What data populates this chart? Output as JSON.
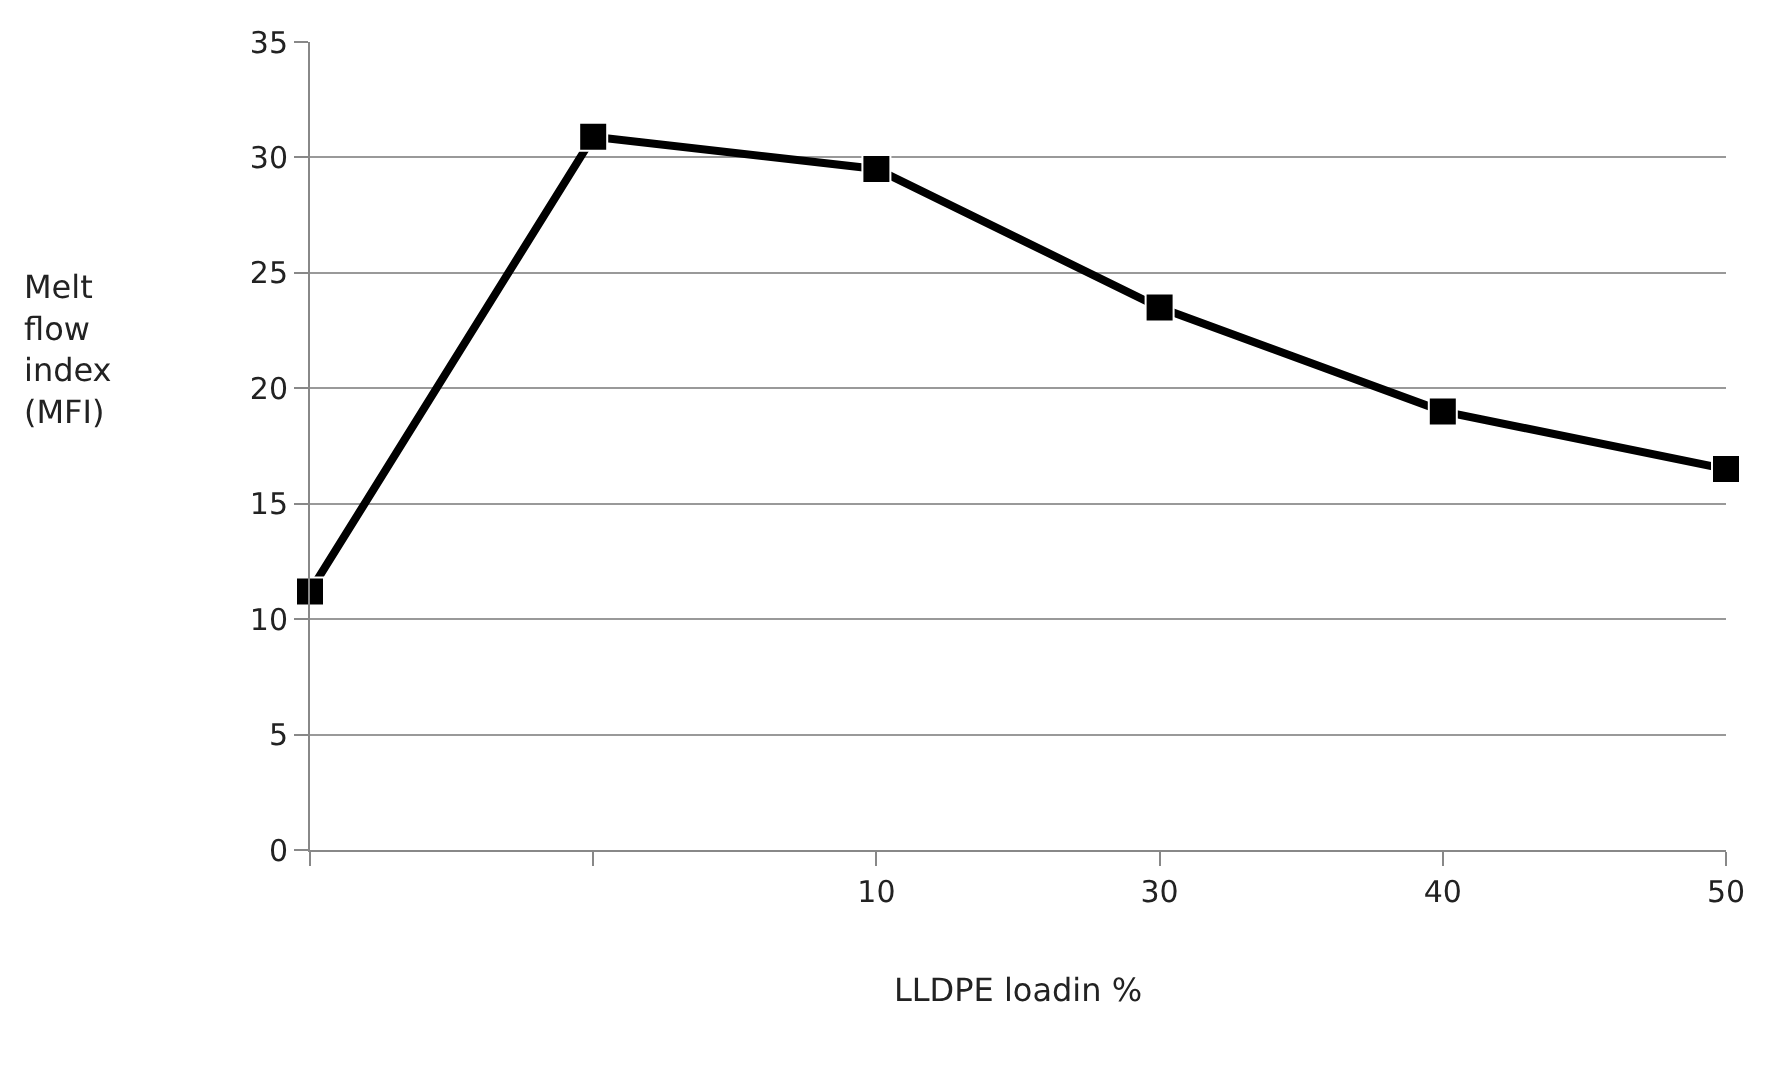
{
  "chart_data": {
    "type": "line",
    "xlabel": "LLDPE loadin %",
    "ylabel": "Melt\nflow\nindex\n(MFI)",
    "categories": [
      null,
      null,
      "10",
      "30",
      "40",
      "50"
    ],
    "series": [
      {
        "color": "#000000",
        "values": [
          11.2,
          30.9,
          29.5,
          23.5,
          19.0,
          16.5
        ]
      }
    ],
    "ylim": [
      0,
      35
    ],
    "yticks": [
      0,
      5,
      10,
      15,
      20,
      25,
      30,
      35
    ],
    "grid": "y",
    "marker": "square",
    "line_style": "solid",
    "legend": false
  }
}
